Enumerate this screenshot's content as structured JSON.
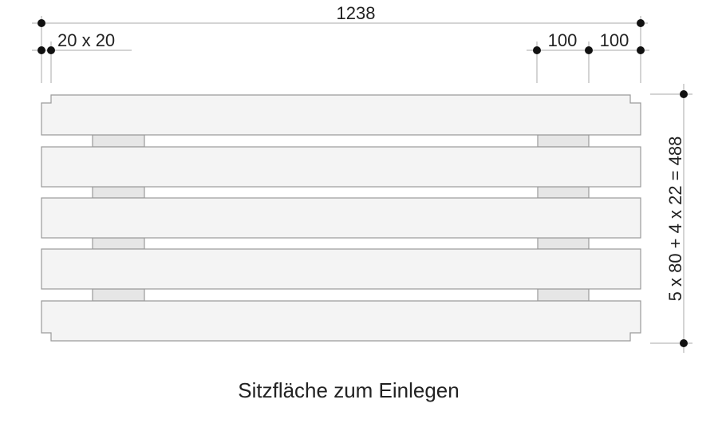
{
  "dimensions": {
    "total_length": "1238",
    "corner_notch": "20 x 20",
    "spacer_offset_1": "100",
    "spacer_offset_2": "100",
    "total_width": "5 x 80 + 4 x 22 = 488"
  },
  "caption": "Sitzfläche zum Einlegen",
  "board_count": 5,
  "colors": {
    "board": "#f4f4f4",
    "spacer": "#e6e6e6",
    "outline": "#9a9a9a",
    "dot": "#111111"
  }
}
